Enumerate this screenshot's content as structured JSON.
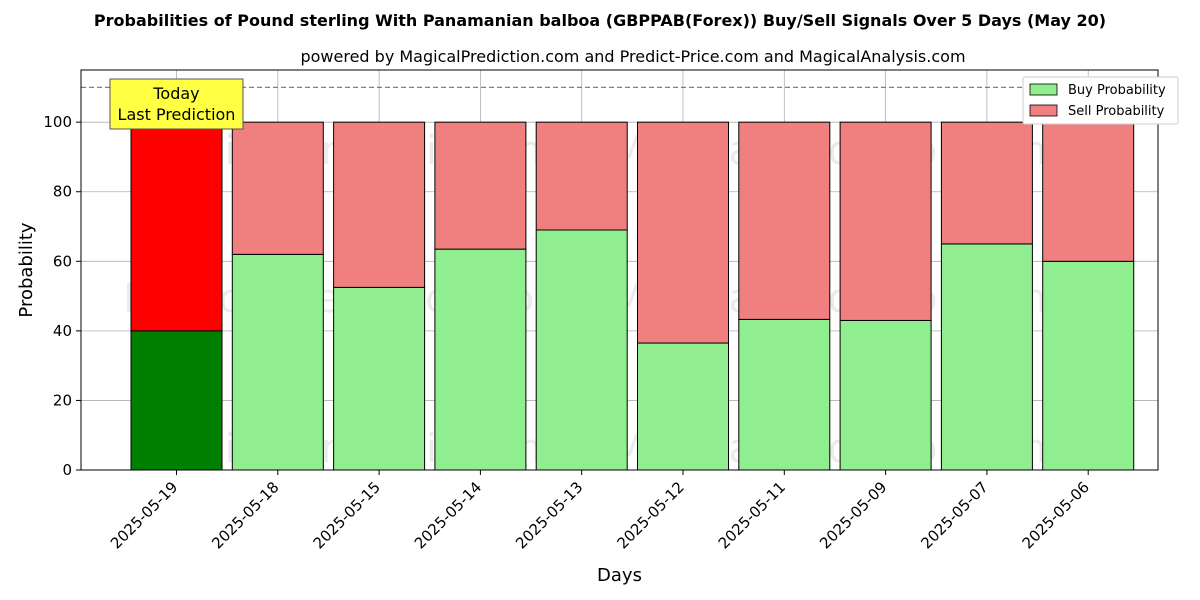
{
  "title": "Probabilities of Pound sterling With Panamanian balboa (GBPPAB(Forex)) Buy/Sell Signals Over 5 Days (May 20)",
  "subtitle": "powered by MagicalPrediction.com and Predict-Price.com and MagicalAnalysis.com",
  "annotation": {
    "line1": "Today",
    "line2": "Last Prediction"
  },
  "watermarks": [
    "MagicalAnalysis.com",
    "MagicalPrediction.com"
  ],
  "chart_data": {
    "type": "bar",
    "stacked": true,
    "title": "Probabilities of Pound sterling With Panamanian balboa (GBPPAB(Forex)) Buy/Sell Signals Over 5 Days (May 20)",
    "xlabel": "Days",
    "ylabel": "Probability",
    "ylim": [
      0,
      115
    ],
    "yticks": [
      0,
      20,
      40,
      60,
      80,
      100
    ],
    "reference_line": 110,
    "grid": true,
    "legend_position": "top-right",
    "categories": [
      "2025-05-19",
      "2025-05-18",
      "2025-05-15",
      "2025-05-14",
      "2025-05-13",
      "2025-05-12",
      "2025-05-11",
      "2025-05-09",
      "2025-05-07",
      "2025-05-06"
    ],
    "series": [
      {
        "name": "Buy Probability",
        "color": "#90ee90",
        "highlight_color": "#008000",
        "values": [
          40,
          62,
          52.5,
          63.5,
          69,
          36.5,
          43.3,
          43,
          65,
          60
        ]
      },
      {
        "name": "Sell Probability",
        "color": "#f08080",
        "highlight_color": "#ff0000",
        "values": [
          60,
          38,
          47.5,
          36.5,
          31,
          63.5,
          56.7,
          57,
          35,
          40
        ]
      }
    ]
  }
}
